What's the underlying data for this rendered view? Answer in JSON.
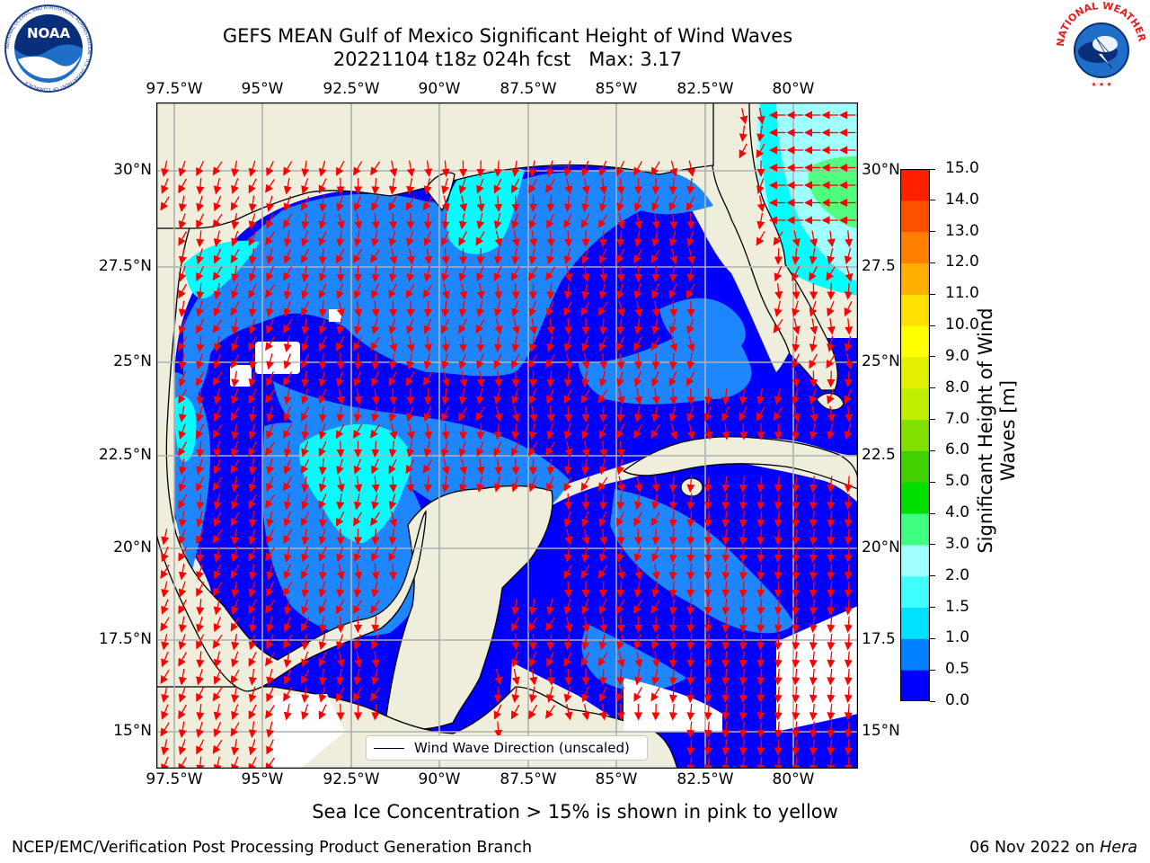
{
  "header": {
    "title_line1": "GEFS MEAN Gulf of Mexico Significant Height of Wind Waves",
    "title_line2": "20221104 t18z 024h fcst   Max: 3.17"
  },
  "logos": {
    "left": "NOAA",
    "left_ring_text": "NATIONAL OCEANIC AND ATMOSPHERIC ADMINISTRATION · U.S. DEPARTMENT OF COMMERCE",
    "right_ring_text": "NATIONAL WEATHER SERVICE"
  },
  "axes": {
    "lon_labels": [
      "97.5°W",
      "95°W",
      "92.5°W",
      "90°W",
      "87.5°W",
      "85°W",
      "82.5°W",
      "80°W"
    ],
    "lat_labels_left": [
      "30°N",
      "27.5°N",
      "25°N",
      "22.5°N",
      "20°N",
      "17.5°N",
      "15°N"
    ],
    "lat_labels_right": [
      "30°N",
      "27.5",
      "25°N",
      "22.5",
      "20°N",
      "17.5",
      "15°N"
    ]
  },
  "legend": {
    "label": "Wind Wave Direction (unscaled)"
  },
  "colorbar": {
    "label_line1": "Significant Height of Wind",
    "label_line2": "Waves [m]",
    "ticks": [
      "15.0",
      "14.0",
      "13.0",
      "12.0",
      "11.0",
      "10.0",
      "9.0",
      "8.0",
      "7.0",
      "6.0",
      "5.0",
      "4.0",
      "3.0",
      "2.0",
      "1.5",
      "1.0",
      "0.5",
      "0.0"
    ],
    "colors": [
      "#0000ff",
      "#0080ff",
      "#00e0ff",
      "#40ffff",
      "#a0ffff",
      "#40ff80",
      "#00e000",
      "#40d000",
      "#80e000",
      "#c0f000",
      "#e0f000",
      "#ffff00",
      "#ffe000",
      "#ffb000",
      "#ff8000",
      "#ff5000",
      "#ff2000",
      "#ff0000"
    ]
  },
  "map_colors": {
    "land": "#efeddc",
    "wave_0_0p5": "#0000ff",
    "wave_0p5_1": "#1e86ff",
    "wave_1_1p5": "#00ffff",
    "wave_2_3": "#a0ffff",
    "wave_3_4": "#50ff80",
    "arrow": "#ff0000"
  },
  "caption": "Sea Ice Concentration > 15% is shown in pink to yellow",
  "footer": {
    "left": "NCEP/EMC/Verification Post Processing Product Generation Branch",
    "right_date": "06 Nov 2022 on ",
    "right_host": "Hera"
  }
}
